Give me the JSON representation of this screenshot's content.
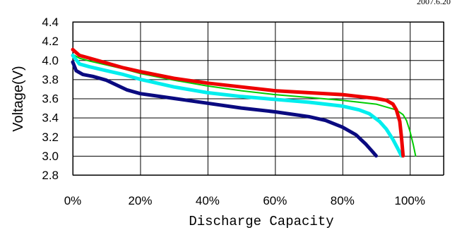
{
  "corner_text": "2007.6.20",
  "chart_data": {
    "type": "line",
    "title": "",
    "xlabel": "Discharge Capacity",
    "ylabel": "Voltage(V)",
    "xlim": [
      0,
      110
    ],
    "ylim": [
      2.8,
      4.4
    ],
    "x_ticks": [
      0,
      20,
      40,
      60,
      80,
      100
    ],
    "x_tick_labels": [
      "0%",
      "20%",
      "40%",
      "60%",
      "80%",
      "100%"
    ],
    "y_ticks": [
      2.8,
      3.0,
      3.2,
      3.4,
      3.6,
      3.8,
      4.0,
      4.2,
      4.4
    ],
    "y_tick_labels": [
      "2.8",
      "3.0",
      "3.2",
      "3.4",
      "3.6",
      "3.8",
      "4.0",
      "4.2",
      "4.4"
    ],
    "grid": true,
    "legend": "none",
    "series": [
      {
        "color": "#00cc00",
        "x": [
          0,
          2,
          5,
          10,
          15,
          20,
          30,
          40,
          50,
          60,
          70,
          80,
          90,
          94,
          96,
          98,
          99,
          100,
          101,
          101.7
        ],
        "y": [
          4.06,
          4.02,
          3.99,
          3.95,
          3.91,
          3.86,
          3.79,
          3.73,
          3.68,
          3.64,
          3.61,
          3.58,
          3.54,
          3.5,
          3.48,
          3.43,
          3.37,
          3.26,
          3.12,
          3.0
        ]
      },
      {
        "color": "#00eeee",
        "x": [
          0,
          2,
          5,
          10,
          15,
          20,
          30,
          40,
          50,
          60,
          70,
          80,
          85,
          88,
          91,
          93,
          95,
          96.5,
          97.5
        ],
        "y": [
          4.05,
          3.96,
          3.93,
          3.89,
          3.85,
          3.8,
          3.72,
          3.66,
          3.62,
          3.59,
          3.56,
          3.52,
          3.48,
          3.44,
          3.36,
          3.28,
          3.17,
          3.07,
          3.0
        ]
      },
      {
        "color": "#0a0a80",
        "x": [
          0,
          1,
          3,
          6,
          10,
          13,
          16,
          20,
          30,
          40,
          50,
          60,
          70,
          75,
          80,
          84,
          87,
          89,
          90
        ],
        "y": [
          3.98,
          3.89,
          3.85,
          3.83,
          3.79,
          3.74,
          3.69,
          3.65,
          3.6,
          3.55,
          3.5,
          3.46,
          3.41,
          3.37,
          3.3,
          3.22,
          3.12,
          3.04,
          3.0
        ]
      },
      {
        "color": "#ee0000",
        "x": [
          0,
          2,
          5,
          10,
          15,
          20,
          30,
          40,
          50,
          60,
          70,
          80,
          85,
          90,
          93,
          95,
          96,
          97,
          97.5,
          98
        ],
        "y": [
          4.11,
          4.05,
          4.02,
          3.97,
          3.92,
          3.88,
          3.81,
          3.76,
          3.72,
          3.68,
          3.66,
          3.64,
          3.62,
          3.6,
          3.58,
          3.54,
          3.48,
          3.36,
          3.2,
          3.0
        ]
      }
    ]
  }
}
